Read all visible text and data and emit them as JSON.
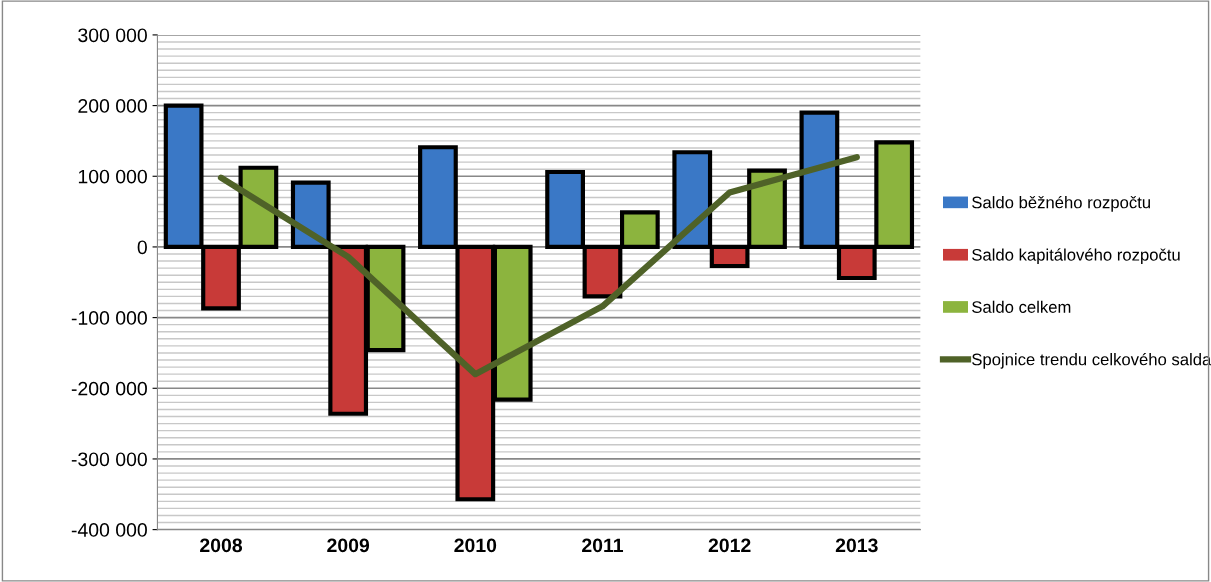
{
  "chart_data": {
    "type": "bar",
    "categories": [
      "2008",
      "2009",
      "2010",
      "2011",
      "2012",
      "2013"
    ],
    "series": [
      {
        "name": "Saldo běžného rozpočtu",
        "color": "#3a78c6",
        "values": [
          200000,
          91000,
          141000,
          106000,
          134000,
          190000
        ]
      },
      {
        "name": "Saldo kapitálového rozpočtu",
        "color": "#c83a38",
        "values": [
          -87000,
          -236000,
          -357000,
          -70000,
          -27000,
          -44000
        ]
      },
      {
        "name": "Saldo celkem",
        "color": "#8cb43e",
        "values": [
          112000,
          -146000,
          -216000,
          49000,
          108000,
          148000
        ]
      },
      {
        "name": "Spojnice trendu celkového salda",
        "type": "line",
        "color": "#4f6228",
        "values": [
          98000,
          -14000,
          -180000,
          -84000,
          77000,
          127000
        ]
      }
    ],
    "ylim": [
      -400000,
      300000
    ],
    "yticks": [
      {
        "value": -400000,
        "label": "-400 000"
      },
      {
        "value": -300000,
        "label": "-300 000"
      },
      {
        "value": -200000,
        "label": "-200 000"
      },
      {
        "value": -100000,
        "label": "-100 000"
      },
      {
        "value": 0,
        "label": "0"
      },
      {
        "value": 100000,
        "label": "100 000"
      },
      {
        "value": 200000,
        "label": "200 000"
      },
      {
        "value": 300000,
        "label": "300 000"
      }
    ],
    "grid": "y",
    "legend": "right",
    "marker": "none",
    "line_style": "solid"
  }
}
